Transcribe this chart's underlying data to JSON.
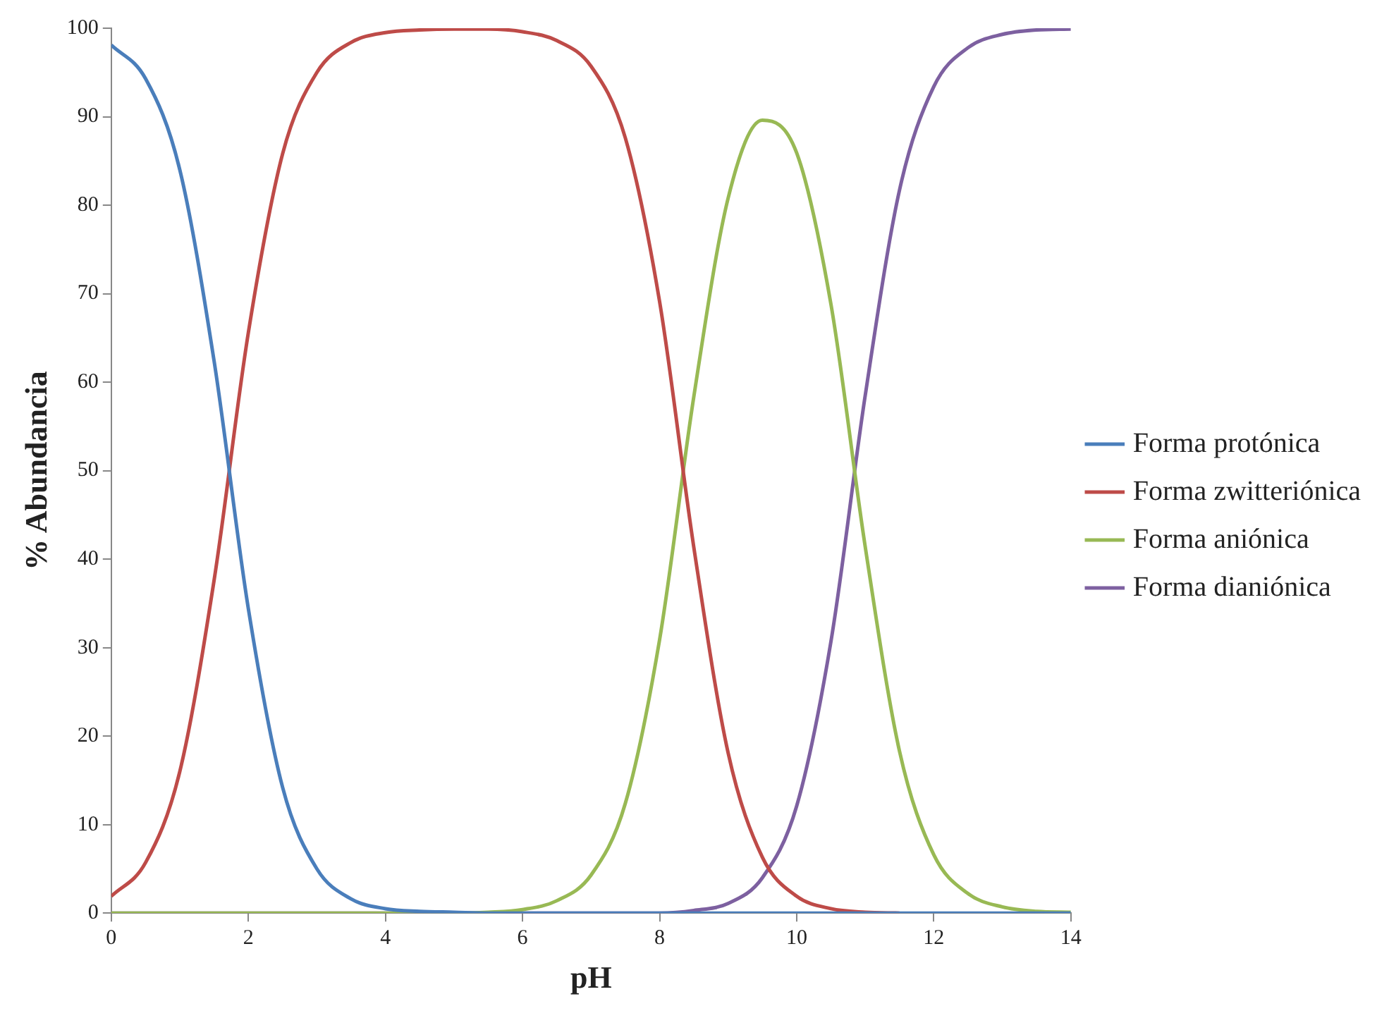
{
  "chart_data": {
    "type": "line",
    "xlabel": "pH",
    "ylabel": "% Abundancia",
    "x": [
      0,
      0.5,
      1,
      1.5,
      2,
      2.5,
      3,
      3.5,
      4,
      4.5,
      5,
      5.5,
      6,
      6.5,
      7,
      7.5,
      8,
      8.5,
      9,
      9.5,
      10,
      10.5,
      11,
      11.5,
      12,
      12.5,
      13,
      13.5,
      14
    ],
    "series": [
      {
        "name": "Forma protónica",
        "color": "#4a7ebb",
        "values": [
          98.1,
          94.3,
          84.0,
          62.4,
          34.4,
          14.2,
          5.0,
          1.6,
          0.5,
          0.2,
          0.1,
          0,
          0,
          0,
          0,
          0,
          0,
          0,
          0,
          0,
          0,
          0,
          0,
          0,
          0,
          0,
          0,
          0,
          0
        ]
      },
      {
        "name": "Forma zwitteriónica",
        "color": "#be4b48",
        "values": [
          1.9,
          5.7,
          16.0,
          37.6,
          65.6,
          85.8,
          95.0,
          98.4,
          99.5,
          99.8,
          99.9,
          99.9,
          99.6,
          98.6,
          95.7,
          87.6,
          69.1,
          41.3,
          18.1,
          6.3,
          1.9,
          0.5,
          0.1,
          0,
          null,
          null,
          null,
          null,
          null
        ]
      },
      {
        "name": "Forma aniónica",
        "color": "#98b954",
        "values": [
          0,
          0,
          0,
          0,
          0,
          0,
          0,
          0,
          0,
          0,
          0,
          0.1,
          0.4,
          1.4,
          4.3,
          12.4,
          30.9,
          58.4,
          80.8,
          89.6,
          85.9,
          68.8,
          41.4,
          18.3,
          6.6,
          2.2,
          0.7,
          0.2,
          0.1
        ]
      },
      {
        "name": "Forma dianiónica",
        "color": "#7d60a0",
        "values": [
          0,
          0,
          0,
          0,
          0,
          0,
          0,
          0,
          0,
          0,
          0,
          0,
          0,
          0,
          0,
          0,
          0,
          0.3,
          1.1,
          4.0,
          12.1,
          30.7,
          58.5,
          81.7,
          93.4,
          97.8,
          99.3,
          99.8,
          99.9
        ]
      }
    ],
    "xlim": [
      0,
      14
    ],
    "xticks": [
      0,
      2,
      4,
      6,
      8,
      10,
      12,
      14
    ],
    "ylim": [
      0,
      100
    ],
    "yticks": [
      0,
      10,
      20,
      30,
      40,
      50,
      60,
      70,
      80,
      90,
      100
    ],
    "grid": false,
    "legend": "right",
    "marker": "none",
    "line_style": "solid"
  }
}
